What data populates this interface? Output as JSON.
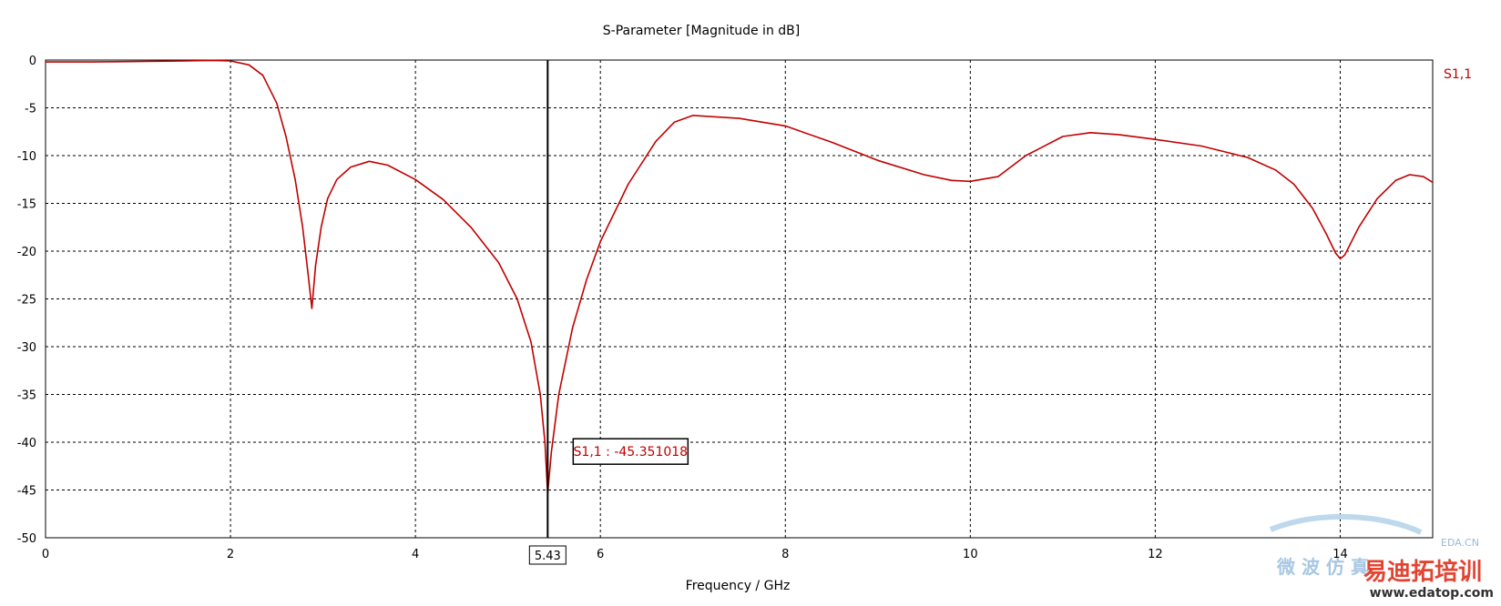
{
  "chart_data": {
    "type": "line",
    "title": "S-Parameter [Magnitude in dB]",
    "xlabel": "Frequency / GHz",
    "ylabel": "",
    "xlim": [
      0,
      15
    ],
    "ylim": [
      -50,
      0
    ],
    "x_ticks": [
      0,
      2,
      4,
      6,
      8,
      10,
      12,
      14
    ],
    "y_ticks": [
      0,
      -5,
      -10,
      -15,
      -20,
      -25,
      -30,
      -35,
      -40,
      -45,
      -50
    ],
    "grid": true,
    "legend_position": "top-right",
    "series": [
      {
        "name": "S1,1",
        "color": "#c00000",
        "points": [
          [
            0.0,
            -0.2
          ],
          [
            0.5,
            -0.2
          ],
          [
            1.0,
            -0.15
          ],
          [
            1.5,
            -0.1
          ],
          [
            1.8,
            -0.05
          ],
          [
            2.0,
            -0.1
          ],
          [
            2.2,
            -0.5
          ],
          [
            2.35,
            -1.6
          ],
          [
            2.5,
            -4.5
          ],
          [
            2.6,
            -8.0
          ],
          [
            2.7,
            -12.5
          ],
          [
            2.78,
            -17.5
          ],
          [
            2.84,
            -22.5
          ],
          [
            2.88,
            -26.0
          ],
          [
            2.92,
            -21.5
          ],
          [
            2.98,
            -17.5
          ],
          [
            3.05,
            -14.5
          ],
          [
            3.15,
            -12.5
          ],
          [
            3.3,
            -11.2
          ],
          [
            3.5,
            -10.6
          ],
          [
            3.7,
            -11.0
          ],
          [
            4.0,
            -12.5
          ],
          [
            4.3,
            -14.6
          ],
          [
            4.6,
            -17.5
          ],
          [
            4.9,
            -21.2
          ],
          [
            5.1,
            -25.0
          ],
          [
            5.25,
            -29.5
          ],
          [
            5.35,
            -35.0
          ],
          [
            5.4,
            -40.0
          ],
          [
            5.43,
            -45.35
          ],
          [
            5.47,
            -41.0
          ],
          [
            5.55,
            -35.0
          ],
          [
            5.7,
            -28.0
          ],
          [
            5.85,
            -23.0
          ],
          [
            6.0,
            -19.0
          ],
          [
            6.3,
            -13.0
          ],
          [
            6.6,
            -8.5
          ],
          [
            6.8,
            -6.5
          ],
          [
            7.0,
            -5.8
          ],
          [
            7.5,
            -6.1
          ],
          [
            8.0,
            -6.9
          ],
          [
            8.5,
            -8.6
          ],
          [
            9.0,
            -10.5
          ],
          [
            9.5,
            -12.0
          ],
          [
            9.8,
            -12.6
          ],
          [
            10.0,
            -12.7
          ],
          [
            10.3,
            -12.2
          ],
          [
            10.6,
            -10.0
          ],
          [
            11.0,
            -8.0
          ],
          [
            11.3,
            -7.6
          ],
          [
            11.6,
            -7.8
          ],
          [
            12.0,
            -8.3
          ],
          [
            12.5,
            -9.0
          ],
          [
            13.0,
            -10.2
          ],
          [
            13.3,
            -11.5
          ],
          [
            13.5,
            -13.0
          ],
          [
            13.7,
            -15.5
          ],
          [
            13.85,
            -18.2
          ],
          [
            13.95,
            -20.2
          ],
          [
            14.0,
            -20.8
          ],
          [
            14.05,
            -20.4
          ],
          [
            14.2,
            -17.5
          ],
          [
            14.4,
            -14.5
          ],
          [
            14.6,
            -12.6
          ],
          [
            14.75,
            -12.0
          ],
          [
            14.9,
            -12.2
          ],
          [
            15.0,
            -12.8
          ]
        ]
      }
    ],
    "marker": {
      "x": 5.43,
      "x_label": "5.43",
      "y": -45.351018,
      "label": "S1,1 : -45.351018"
    }
  },
  "watermark": {
    "site": "www.edatop.com",
    "brand": "易迪拓培训",
    "line1": "微 波 仿 真",
    "corner": "EDA.CN"
  }
}
